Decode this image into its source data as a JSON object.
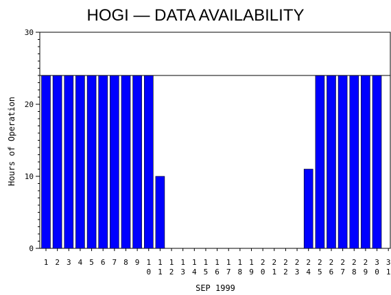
{
  "chart_data": {
    "type": "bar",
    "title": "HOGI — DATA AVAILABILITY",
    "xlabel": "SEP 1999",
    "ylabel": "Hours of Operation",
    "ylim": [
      0,
      30
    ],
    "yticks": [
      0,
      10,
      20,
      30
    ],
    "reference_line": 24,
    "bar_color": "#0000ff",
    "categories": [
      "1",
      "2",
      "3",
      "4",
      "5",
      "6",
      "7",
      "8",
      "9",
      "10",
      "11",
      "12",
      "13",
      "14",
      "15",
      "16",
      "17",
      "18",
      "19",
      "20",
      "21",
      "22",
      "23",
      "24",
      "25",
      "26",
      "27",
      "28",
      "29",
      "30",
      "31"
    ],
    "values": [
      24,
      24,
      24,
      24,
      24,
      24,
      24,
      24,
      24,
      24,
      10,
      0,
      0,
      0,
      0,
      0,
      0,
      0,
      0,
      0,
      0,
      0,
      0,
      11,
      24,
      24,
      24,
      24,
      24,
      24,
      null
    ]
  }
}
